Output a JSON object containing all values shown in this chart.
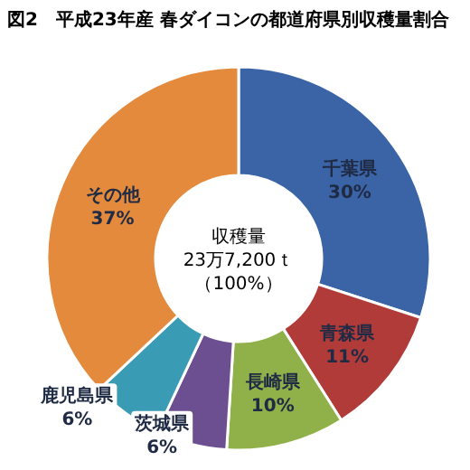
{
  "chart_data": {
    "type": "donut",
    "title": "図2　平成23年産 春ダイコンの都道府県別収穫量割合",
    "categories": [
      "千葉県",
      "青森県",
      "長崎県",
      "茨城県",
      "鹿児島県",
      "その他"
    ],
    "values": [
      30,
      11,
      10,
      6,
      6,
      37
    ],
    "colors": [
      "#3b64a6",
      "#b13b39",
      "#90b04a",
      "#6b4f91",
      "#3a9bb5",
      "#e38a3c"
    ],
    "value_labels": [
      "30%",
      "11%",
      "10%",
      "6%",
      "6%",
      "37%"
    ],
    "annotations": [
      "収穫量",
      "23万7,200ｔ",
      "（100%）"
    ]
  }
}
